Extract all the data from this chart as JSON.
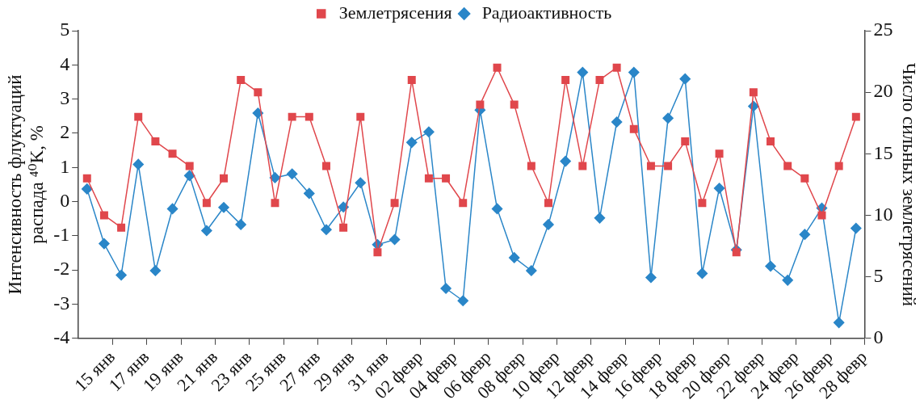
{
  "chart_data": {
    "type": "line",
    "ylabel": "Интенсивность флуктуаций распада ⁴⁰K, %",
    "y2label": "Число сильных землетрясений",
    "x": [
      "--01-13T12:00",
      "--01-14T12:00",
      "--01-15T12:00",
      "--01-16T12:00",
      "--01-17T12:00",
      "--01-18T12:00",
      "--01-19T12:00",
      "--01-20T12:00",
      "--01-21T12:00",
      "--01-22T12:00",
      "--01-23T12:00",
      "--01-24T12:00",
      "--01-25T12:00",
      "--01-26T12:00",
      "--01-27T12:00",
      "--01-28T12:00",
      "--01-29T12:00",
      "--01-30T12:00",
      "--01-31T12:00",
      "--02-01T12:00",
      "--02-02T12:00",
      "--02-03T12:00",
      "--02-04T12:00",
      "--02-05T12:00",
      "--02-06T12:00",
      "--02-07T12:00",
      "--02-08T12:00",
      "--02-09T12:00",
      "--02-10T12:00",
      "--02-11T12:00",
      "--02-12T12:00",
      "--02-13T12:00",
      "--02-14T12:00",
      "--02-15T12:00",
      "--02-16T12:00",
      "--02-17T12:00",
      "--02-18T12:00",
      "--02-19T12:00",
      "--02-20T12:00",
      "--02-21T12:00",
      "--02-22T12:00",
      "--02-23T12:00",
      "--02-24T12:00",
      "--02-25T12:00",
      "--02-26T12:00",
      "--02-27T12:00"
    ],
    "xlim": [
      "--01-13",
      "--02-28"
    ],
    "xticks": [
      {
        "value": "--01-15",
        "label": "15 янв"
      },
      {
        "value": "--01-17",
        "label": "17 янв"
      },
      {
        "value": "--01-19",
        "label": "19 янв"
      },
      {
        "value": "--01-21",
        "label": "21 янв"
      },
      {
        "value": "--01-23",
        "label": "23 янв"
      },
      {
        "value": "--01-25",
        "label": "25 янв"
      },
      {
        "value": "--01-27",
        "label": "27 янв"
      },
      {
        "value": "--01-29",
        "label": "29 янв"
      },
      {
        "value": "--01-31",
        "label": "31 янв"
      },
      {
        "value": "--02-02",
        "label": "02 февр"
      },
      {
        "value": "--02-04",
        "label": "04 февр"
      },
      {
        "value": "--02-06",
        "label": "06 февр"
      },
      {
        "value": "--02-08",
        "label": "08 февр"
      },
      {
        "value": "--02-10",
        "label": "10 февр"
      },
      {
        "value": "--02-12",
        "label": "12 февр"
      },
      {
        "value": "--02-14",
        "label": "14 февр"
      },
      {
        "value": "--02-16",
        "label": "16 февр"
      },
      {
        "value": "--02-18",
        "label": "18 февр"
      },
      {
        "value": "--02-20",
        "label": "20 февр"
      },
      {
        "value": "--02-22",
        "label": "22 февр"
      },
      {
        "value": "--02-24",
        "label": "24 февр"
      },
      {
        "value": "--02-26",
        "label": "26 февр"
      },
      {
        "value": "--02-28",
        "label": "28 февр"
      }
    ],
    "ylim": [
      -4,
      5
    ],
    "yticks": [
      -4,
      -3,
      -2,
      -1,
      0,
      1,
      2,
      3,
      4,
      5
    ],
    "y2lim": [
      0,
      25
    ],
    "y2ticks": [
      0,
      5,
      10,
      15,
      20,
      25
    ],
    "series": [
      {
        "name": "Радиоактивность",
        "color": "#2a86c8",
        "marker": "diamond",
        "values": [
          0.37,
          -1.23,
          -2.15,
          1.09,
          -2.02,
          -0.21,
          0.76,
          -0.85,
          -0.17,
          -0.67,
          2.59,
          0.7,
          0.81,
          0.24,
          -0.82,
          -0.16,
          0.55,
          -1.26,
          -1.11,
          1.73,
          2.04,
          -2.54,
          -2.9,
          2.68,
          -0.21,
          -1.64,
          -2.02,
          -0.67,
          1.18,
          3.78,
          -0.48,
          2.33,
          3.78,
          -2.22,
          2.44,
          3.59,
          -2.1,
          0.39,
          -1.41,
          2.79,
          -1.89,
          -2.3,
          -0.96,
          -0.19,
          -3.54,
          -0.78
        ]
      },
      {
        "name": "Землетрясения",
        "color": "#e0474c",
        "marker": "square",
        "axis": "y2",
        "values": [
          13,
          10,
          9,
          18,
          16,
          15,
          14,
          11,
          13,
          21,
          20,
          11,
          18,
          18,
          14,
          9,
          18,
          7,
          11,
          21,
          13,
          13,
          11,
          19,
          22,
          19,
          14,
          11,
          21,
          14,
          21,
          22,
          17,
          14,
          14,
          16,
          11,
          15,
          7,
          20,
          16,
          14,
          13,
          10,
          14,
          18
        ]
      }
    ],
    "legend": "top",
    "grid": false
  }
}
